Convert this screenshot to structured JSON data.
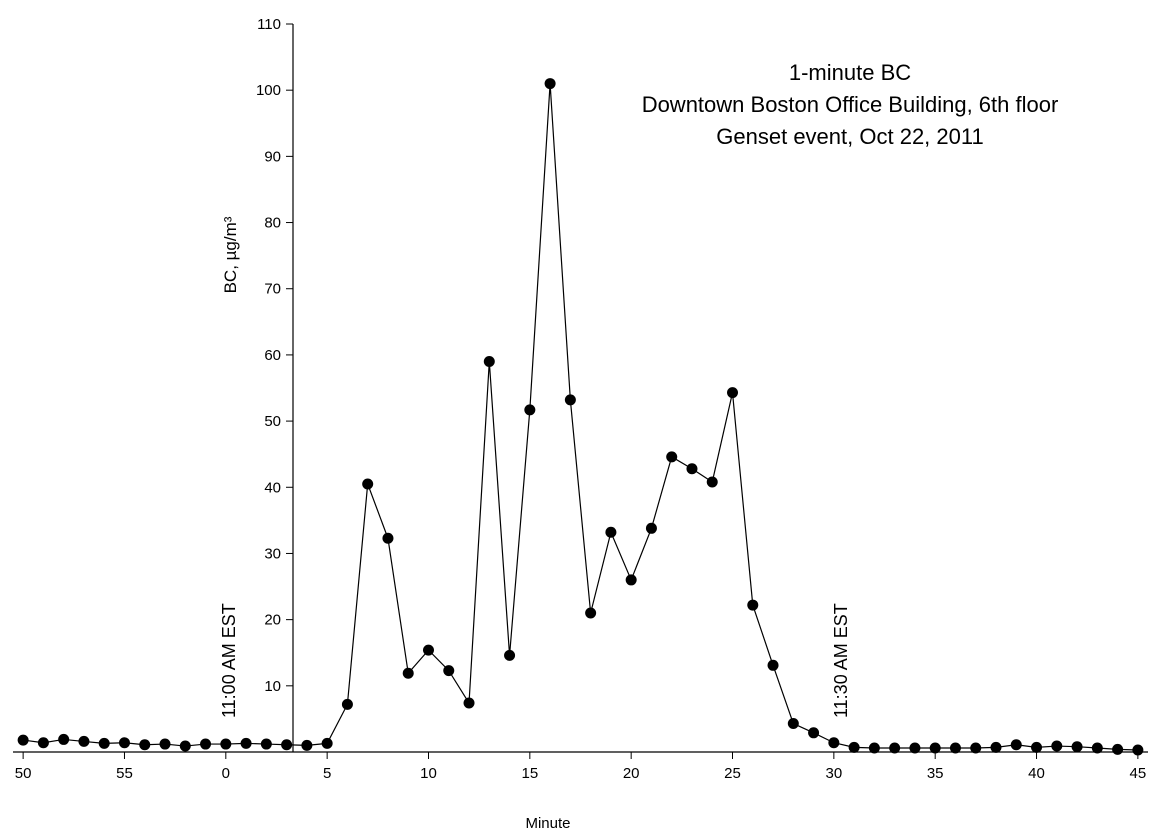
{
  "chart_data": {
    "type": "line",
    "title": [
      "1-minute BC",
      "Downtown Boston Office Building, 6th floor",
      "Genset event, Oct 22, 2011"
    ],
    "x_label": "Minute",
    "y_label": "BC, µg/m³",
    "annotations": [
      "11:00 AM EST",
      "11:30 AM EST"
    ],
    "x": [
      -10,
      -9,
      -8,
      -7,
      -6,
      -5,
      -4,
      -3,
      -2,
      -1,
      0,
      1,
      2,
      3,
      4,
      5,
      6,
      7,
      8,
      9,
      10,
      11,
      12,
      13,
      14,
      15,
      16,
      17,
      18,
      19,
      20,
      21,
      22,
      23,
      24,
      25,
      26,
      27,
      28,
      29,
      30,
      31,
      32,
      33,
      34,
      35,
      36,
      37,
      38,
      39,
      40,
      41,
      42,
      43,
      44,
      45
    ],
    "series": [
      {
        "name": "BC",
        "color": "#000000",
        "values": [
          1.8,
          1.4,
          1.9,
          1.6,
          1.3,
          1.4,
          1.1,
          1.2,
          0.9,
          1.2,
          1.2,
          1.3,
          1.2,
          1.1,
          1.0,
          1.3,
          7.2,
          40.5,
          32.3,
          11.9,
          15.4,
          12.3,
          7.4,
          59,
          14.6,
          51.7,
          101,
          53.2,
          21,
          33.2,
          26,
          33.8,
          44.6,
          42.8,
          40.8,
          54.3,
          22.2,
          13.1,
          4.3,
          2.9,
          1.4,
          0.7,
          0.6,
          0.6,
          0.6,
          0.6,
          0.6,
          0.6,
          0.7,
          1.1,
          0.7,
          0.9,
          0.8,
          0.6,
          0.4,
          0.3
        ]
      }
    ],
    "xlim": [
      -10.5,
      45.5
    ],
    "xticks": [
      {
        "value": -10,
        "label": "50"
      },
      {
        "value": -5,
        "label": "55"
      },
      0,
      5,
      10,
      15,
      20,
      25,
      30,
      35,
      40,
      45
    ],
    "ylim": [
      0,
      110
    ],
    "yticks": [
      10,
      20,
      30,
      40,
      50,
      60,
      70,
      80,
      90,
      100,
      110
    ],
    "grid": false
  }
}
